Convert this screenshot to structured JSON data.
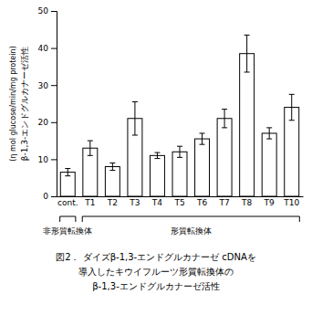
{
  "chart_data": {
    "type": "bar",
    "title": [
      "図2． ダイズβ-1,3-エンドグルカナーゼ cDNAを",
      "導入したキウイフルーツ形質転換体の",
      "β-1,3-エンドグルカナーゼ活性"
    ],
    "ylabel": [
      "β-1,3-エンドグルカナーゼ活性",
      "(η mol glucose/min/mg protein)"
    ],
    "categories": [
      "cont.",
      "T1",
      "T2",
      "T3",
      "T4",
      "T5",
      "T6",
      "T7",
      "T8",
      "T9",
      "T10"
    ],
    "values": [
      6.5,
      13.0,
      8.0,
      21.0,
      11.0,
      12.0,
      15.5,
      21.0,
      38.5,
      17.0,
      24.0
    ],
    "errors": [
      1.0,
      2.0,
      1.0,
      4.5,
      0.8,
      1.5,
      1.5,
      2.5,
      5.0,
      1.5,
      3.5
    ],
    "color": "#ffffff",
    "ylim": [
      0,
      50
    ],
    "yticks": [
      0,
      10,
      20,
      30,
      40,
      50
    ],
    "grid": false,
    "annotations": [
      {
        "text": "非形質転換体",
        "from": "cont.",
        "to": "cont."
      },
      {
        "text": "形質転換体",
        "from": "T1",
        "to": "T10"
      }
    ]
  }
}
